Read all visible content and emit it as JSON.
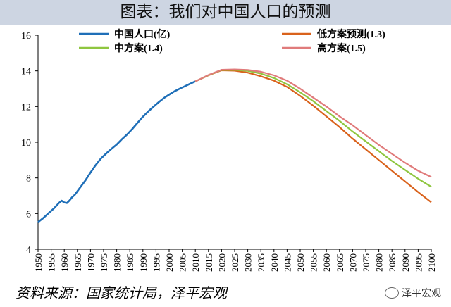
{
  "header": {
    "title": "图表：我们对中国人口的预测"
  },
  "footer": {
    "source": "资料来源：国家统计局，泽平宏观",
    "watermark": "泽平宏观"
  },
  "chart_data": {
    "type": "line",
    "title": "图表：我们对中国人口的预测",
    "xlim": [
      1950,
      2100
    ],
    "ylim": [
      4,
      16
    ],
    "y_ticks": [
      4,
      6,
      8,
      10,
      12,
      14,
      16
    ],
    "x_ticks": [
      1950,
      1955,
      1960,
      1965,
      1970,
      1975,
      1980,
      1985,
      1990,
      1995,
      2000,
      2005,
      2010,
      2015,
      2020,
      2025,
      2030,
      2035,
      2040,
      2045,
      2050,
      2055,
      2060,
      2065,
      2070,
      2075,
      2080,
      2085,
      2090,
      2095,
      2100
    ],
    "grid": false,
    "legend_position": "top",
    "series": [
      {
        "name": "中国人口(亿)",
        "color": "#1f6fb8",
        "x": [
          1950,
          1952,
          1954,
          1956,
          1958,
          1959,
          1960,
          1961,
          1962,
          1963,
          1964,
          1966,
          1968,
          1970,
          1972,
          1974,
          1976,
          1978,
          1980,
          1982,
          1984,
          1986,
          1988,
          1990,
          1992,
          1994,
          1996,
          1998,
          2000,
          2002,
          2004,
          2006,
          2008,
          2010
        ],
        "y": [
          5.52,
          5.75,
          6.02,
          6.28,
          6.6,
          6.72,
          6.62,
          6.59,
          6.73,
          6.92,
          7.05,
          7.45,
          7.85,
          8.3,
          8.72,
          9.09,
          9.37,
          9.63,
          9.87,
          10.17,
          10.44,
          10.75,
          11.1,
          11.43,
          11.72,
          11.99,
          12.24,
          12.48,
          12.67,
          12.85,
          13.0,
          13.14,
          13.28,
          13.41
        ]
      },
      {
        "name": "低方案预测(1.3)",
        "color": "#d9621c",
        "x": [
          2010,
          2015,
          2020,
          2025,
          2030,
          2035,
          2040,
          2045,
          2050,
          2055,
          2060,
          2065,
          2070,
          2075,
          2080,
          2085,
          2090,
          2095,
          2100
        ],
        "y": [
          13.41,
          13.75,
          14.03,
          14.01,
          13.9,
          13.7,
          13.45,
          13.1,
          12.6,
          12.05,
          11.45,
          10.85,
          10.2,
          9.6,
          9.0,
          8.4,
          7.8,
          7.2,
          6.63
        ]
      },
      {
        "name": "中方案(1.4)",
        "color": "#8fc640",
        "x": [
          2010,
          2015,
          2020,
          2025,
          2030,
          2035,
          2040,
          2045,
          2050,
          2055,
          2060,
          2065,
          2070,
          2075,
          2080,
          2085,
          2090,
          2095,
          2100
        ],
        "y": [
          13.41,
          13.76,
          14.05,
          14.06,
          14.0,
          13.85,
          13.6,
          13.25,
          12.8,
          12.3,
          11.75,
          11.2,
          10.6,
          10.05,
          9.5,
          8.95,
          8.45,
          7.95,
          7.5
        ]
      },
      {
        "name": "高方案(1.5)",
        "color": "#e07b7b",
        "x": [
          2010,
          2015,
          2020,
          2025,
          2030,
          2035,
          2040,
          2045,
          2050,
          2055,
          2060,
          2065,
          2070,
          2075,
          2080,
          2085,
          2090,
          2095,
          2100
        ],
        "y": [
          13.41,
          13.77,
          14.06,
          14.08,
          14.05,
          13.95,
          13.75,
          13.45,
          13.0,
          12.5,
          12.0,
          11.45,
          10.95,
          10.4,
          9.85,
          9.35,
          8.85,
          8.4,
          8.05
        ]
      }
    ]
  }
}
